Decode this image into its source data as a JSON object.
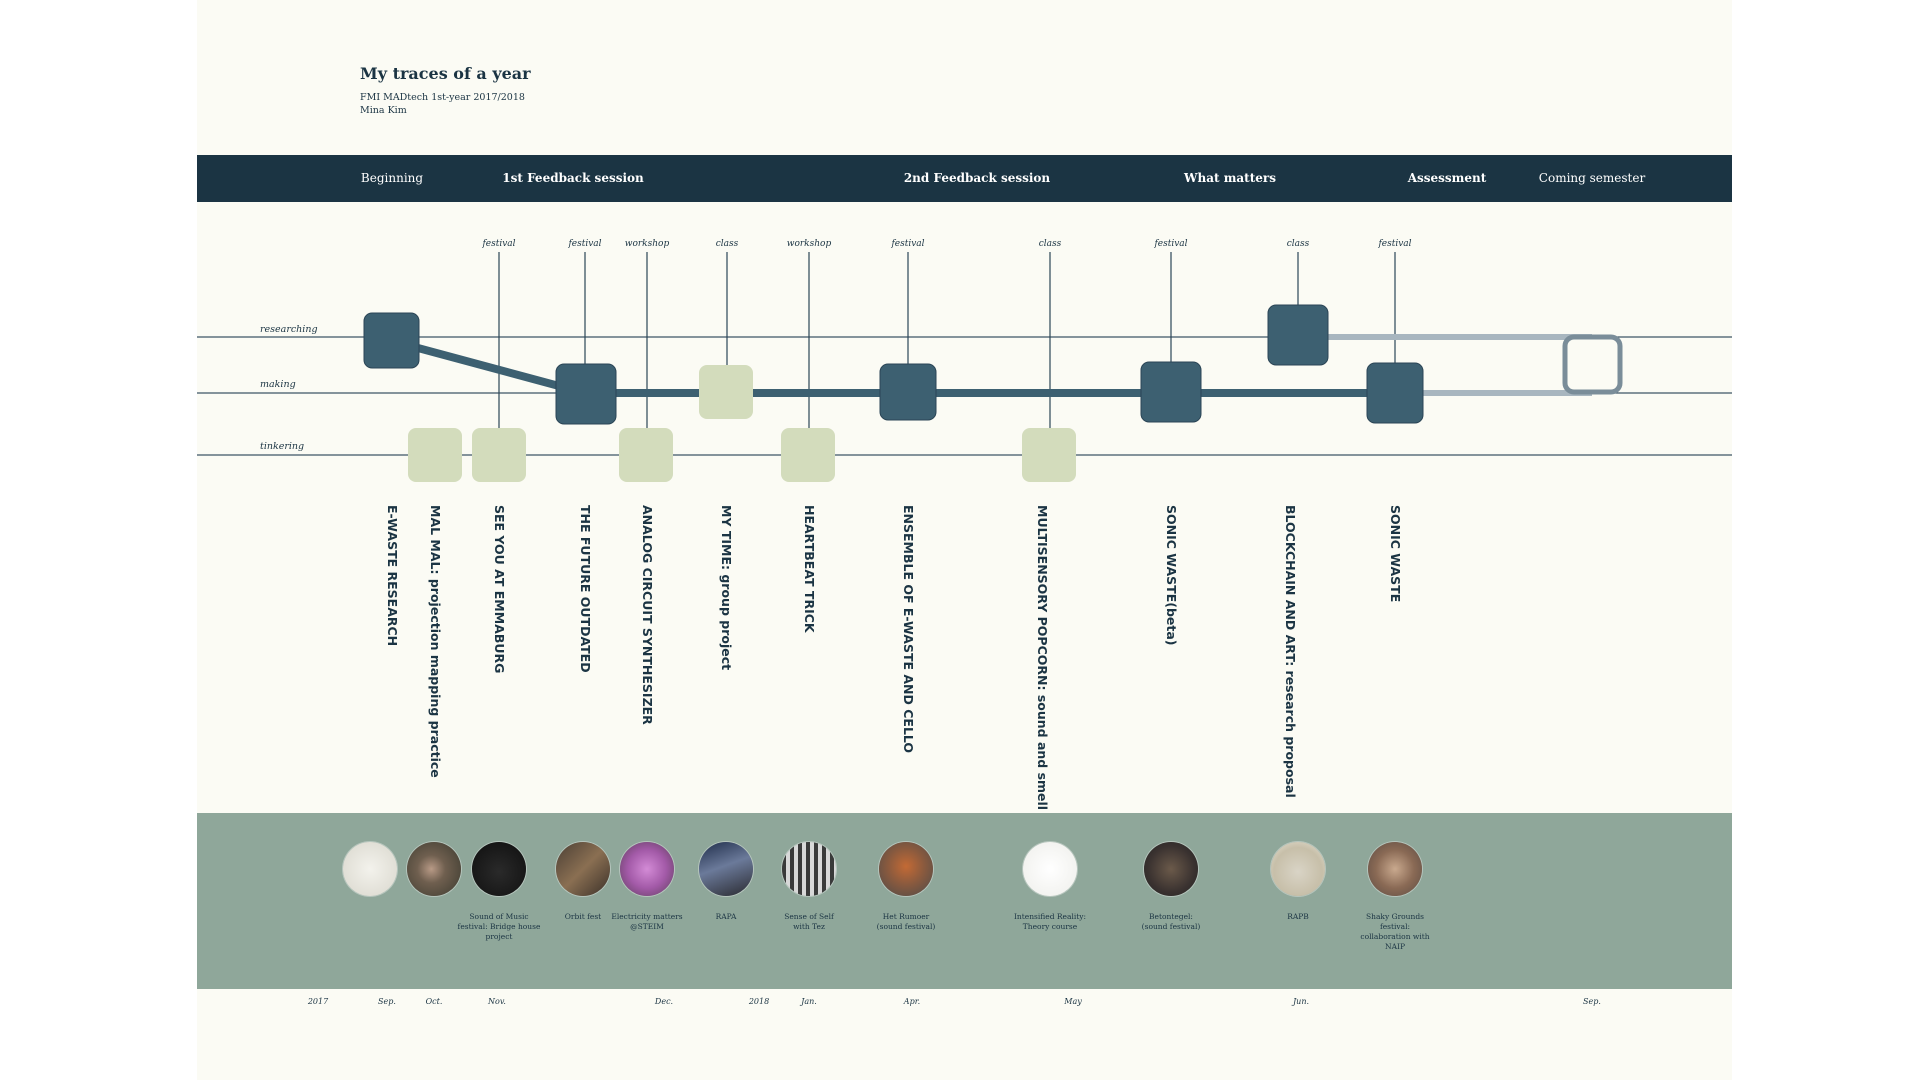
{
  "header": {
    "title": "My traces of a year",
    "subtitle": "FMI MADtech 1st-year 2017/2018",
    "author": "Mina Kim"
  },
  "phases": [
    {
      "label": "Beginning",
      "bold": false
    },
    {
      "label": "1st Feedback session",
      "bold": true
    },
    {
      "label": "2nd Feedback session",
      "bold": true
    },
    {
      "label": "What matters",
      "bold": true
    },
    {
      "label": "Assessment",
      "bold": true
    },
    {
      "label": "Coming semester",
      "bold": false
    }
  ],
  "lanes": [
    {
      "id": "researching",
      "label": "researching"
    },
    {
      "id": "making",
      "label": "making"
    },
    {
      "id": "tinkering",
      "label": "tinkering"
    }
  ],
  "projects": [
    {
      "title": "E-WASTE RESEARCH",
      "lane": "researching",
      "category": ""
    },
    {
      "title": "MAL MAL: projection mapping practice",
      "lane": "tinkering",
      "category": ""
    },
    {
      "title": "SEE YOU AT EMMABURG",
      "lane": "tinkering",
      "category": "festival"
    },
    {
      "title": "THE FUTURE OUTDATED",
      "lane": "making",
      "category": "festival"
    },
    {
      "title": "ANALOG CIRCUIT SYNTHESIZER",
      "lane": "tinkering",
      "category": "workshop"
    },
    {
      "title": "MY TIME: group project",
      "lane": "making",
      "category": "class"
    },
    {
      "title": "HEARTBEAT TRICK",
      "lane": "tinkering",
      "category": "workshop"
    },
    {
      "title": "ENSEMBLE OF E-WASTE AND CELLO",
      "lane": "making",
      "category": "festival"
    },
    {
      "title": "MULTISENSORY POPCORN: sound and smell",
      "lane": "tinkering",
      "category": "class"
    },
    {
      "title": "SONIC WASTE(beta)",
      "lane": "making",
      "category": "festival"
    },
    {
      "title": "BLOCKCHAIN AND ART: research proposal",
      "lane": "researching",
      "category": "class"
    },
    {
      "title": "SONIC WASTE",
      "lane": "making",
      "category": "festival"
    },
    {
      "title": "",
      "lane": "between researching and making",
      "category": ""
    }
  ],
  "photos": [
    {
      "caption": ""
    },
    {
      "caption": ""
    },
    {
      "caption": "Sound of Music festival: Bridge house project"
    },
    {
      "caption": "Orbit fest"
    },
    {
      "caption": "Electricity matters @STEIM"
    },
    {
      "caption": "RAPA"
    },
    {
      "caption": "Sense of Self with Tez"
    },
    {
      "caption": "Het Rumoer (sound festival)"
    },
    {
      "caption": "Intensified Reality: Theory course"
    },
    {
      "caption": "Betontegel: (sound festival)"
    },
    {
      "caption": "RAPB"
    },
    {
      "caption": "Shaky Grounds festival: collaboration with NAIP"
    }
  ],
  "timeline_dates": [
    "2017",
    "Sep.",
    "Oct.",
    "Nov.",
    "Dec.",
    "2018",
    "Jan.",
    "Apr.",
    "May",
    "Jun.",
    "Sep."
  ],
  "colors": {
    "navy": "#1b3443",
    "node_dark": "#3d6071",
    "node_light": "#d3dcbc",
    "photo_band": "#8fa79a",
    "background": "#fbfbf4"
  }
}
